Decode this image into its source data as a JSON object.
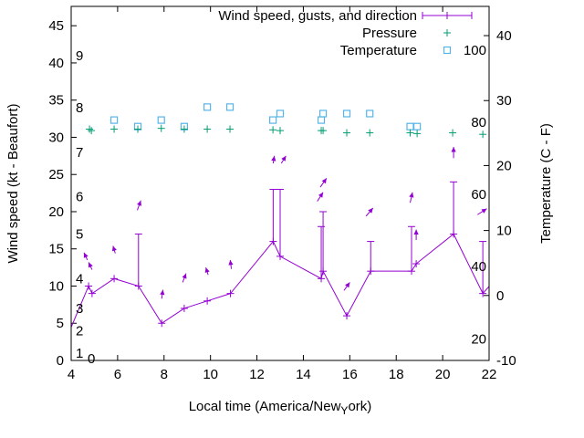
{
  "chart_data": {
    "type": "line",
    "xlabel": "Local time (America/New_York)",
    "ylabel": "Wind speed (kt - Beaufort)",
    "y2label": "Temperature (C - F)",
    "xlim": [
      4,
      22
    ],
    "ylim": [
      0,
      47.6
    ],
    "y2lim": [
      -10,
      44.5
    ],
    "x_ticks": [
      4,
      6,
      8,
      10,
      12,
      14,
      16,
      18,
      20,
      22
    ],
    "y_ticks": [
      0,
      5,
      10,
      15,
      20,
      25,
      30,
      35,
      40,
      45
    ],
    "y2_ticks": [
      -10,
      0,
      10,
      20,
      30,
      40
    ],
    "beaufort_labels": [
      {
        "label": "0",
        "kt": 0
      },
      {
        "label": "1",
        "kt": 1
      },
      {
        "label": "2",
        "kt": 4
      },
      {
        "label": "3",
        "kt": 7
      },
      {
        "label": "4",
        "kt": 11
      },
      {
        "label": "5",
        "kt": 17
      },
      {
        "label": "6",
        "kt": 22
      },
      {
        "label": "7",
        "kt": 28
      },
      {
        "label": "8",
        "kt": 34
      },
      {
        "label": "9",
        "kt": 41
      }
    ],
    "fahrenheit_labels": [
      {
        "label": "20",
        "f": 20
      },
      {
        "label": "40",
        "f": 40
      },
      {
        "label": "60",
        "f": 60
      },
      {
        "label": "80",
        "f": 80
      },
      {
        "label": "100",
        "f": 100
      }
    ],
    "legend": {
      "position": "top-right",
      "entries": [
        "Wind speed, gusts, and direction",
        "Pressure",
        "Temperature"
      ]
    },
    "colors": {
      "wind": "#9400d3",
      "pressure": "#009e73",
      "temperature": "#56b4e9"
    },
    "wind": {
      "x": [
        3.8,
        4.75,
        4.9,
        5.85,
        6.9,
        7.9,
        8.87,
        9.86,
        10.86,
        12.7,
        13.0,
        14.77,
        14.85,
        15.87,
        16.9,
        18.66,
        18.86,
        20.47,
        21.73,
        22.3
      ],
      "speed": [
        3,
        10,
        9,
        11,
        10,
        5,
        7,
        8,
        9,
        16,
        14,
        11,
        12,
        6,
        12,
        12,
        13,
        17,
        9,
        11
      ],
      "gust": [
        null,
        null,
        null,
        null,
        17,
        null,
        null,
        null,
        null,
        23,
        23,
        18,
        20,
        null,
        16,
        18,
        null,
        24,
        16,
        null
      ]
    },
    "direction_arrows": [
      {
        "x": 4.7,
        "y": 13.5,
        "to_x": 4.55,
        "to_y": 14.5
      },
      {
        "x": 4.9,
        "y": 12.2,
        "to_x": 4.75,
        "to_y": 13.2
      },
      {
        "x": 5.9,
        "y": 14.4,
        "to_x": 5.8,
        "to_y": 15.4
      },
      {
        "x": 6.85,
        "y": 20.2,
        "to_x": 7.0,
        "to_y": 21.5
      },
      {
        "x": 7.9,
        "y": 8.3,
        "to_x": 7.95,
        "to_y": 9.5
      },
      {
        "x": 8.8,
        "y": 10.5,
        "to_x": 8.95,
        "to_y": 11.7
      },
      {
        "x": 9.9,
        "y": 11.5,
        "to_x": 9.8,
        "to_y": 12.5
      },
      {
        "x": 10.9,
        "y": 12.3,
        "to_x": 10.85,
        "to_y": 13.5
      },
      {
        "x": 12.7,
        "y": 26.5,
        "to_x": 12.75,
        "to_y": 27.5
      },
      {
        "x": 13.05,
        "y": 26.5,
        "to_x": 13.25,
        "to_y": 27.5
      },
      {
        "x": 14.6,
        "y": 21.4,
        "to_x": 14.85,
        "to_y": 22.6
      },
      {
        "x": 14.73,
        "y": 23.3,
        "to_x": 15.0,
        "to_y": 24.5
      },
      {
        "x": 15.75,
        "y": 9.4,
        "to_x": 16.0,
        "to_y": 10.5
      },
      {
        "x": 16.7,
        "y": 19.4,
        "to_x": 17.0,
        "to_y": 20.5
      },
      {
        "x": 18.6,
        "y": 21.2,
        "to_x": 18.7,
        "to_y": 22.6
      },
      {
        "x": 18.86,
        "y": 16.2,
        "to_x": 18.86,
        "to_y": 17.6
      },
      {
        "x": 20.47,
        "y": 27.2,
        "to_x": 20.47,
        "to_y": 28.7
      },
      {
        "x": 21.5,
        "y": 19.6,
        "to_x": 21.9,
        "to_y": 20.4
      }
    ],
    "pressure_plotted": {
      "x": [
        4.79,
        4.87,
        5.85,
        6.87,
        7.88,
        8.87,
        9.86,
        10.84,
        12.69,
        13.0,
        14.77,
        14.85,
        15.87,
        16.86,
        18.6,
        18.9,
        20.43,
        21.73
      ],
      "y": [
        31.1,
        30.9,
        31.1,
        31.1,
        31.2,
        31.1,
        31.1,
        31.1,
        31.0,
        30.9,
        30.9,
        30.9,
        30.6,
        30.6,
        30.6,
        30.5,
        30.6,
        30.4
      ]
    },
    "temperature_c": {
      "x": [
        5.85,
        6.87,
        7.88,
        8.87,
        9.86,
        10.84,
        12.69,
        13.0,
        14.77,
        14.85,
        15.87,
        16.86,
        18.6,
        18.9
      ],
      "y": [
        27,
        26,
        27,
        26,
        29,
        29,
        27,
        28,
        27,
        28,
        28,
        28,
        26,
        26
      ]
    }
  }
}
